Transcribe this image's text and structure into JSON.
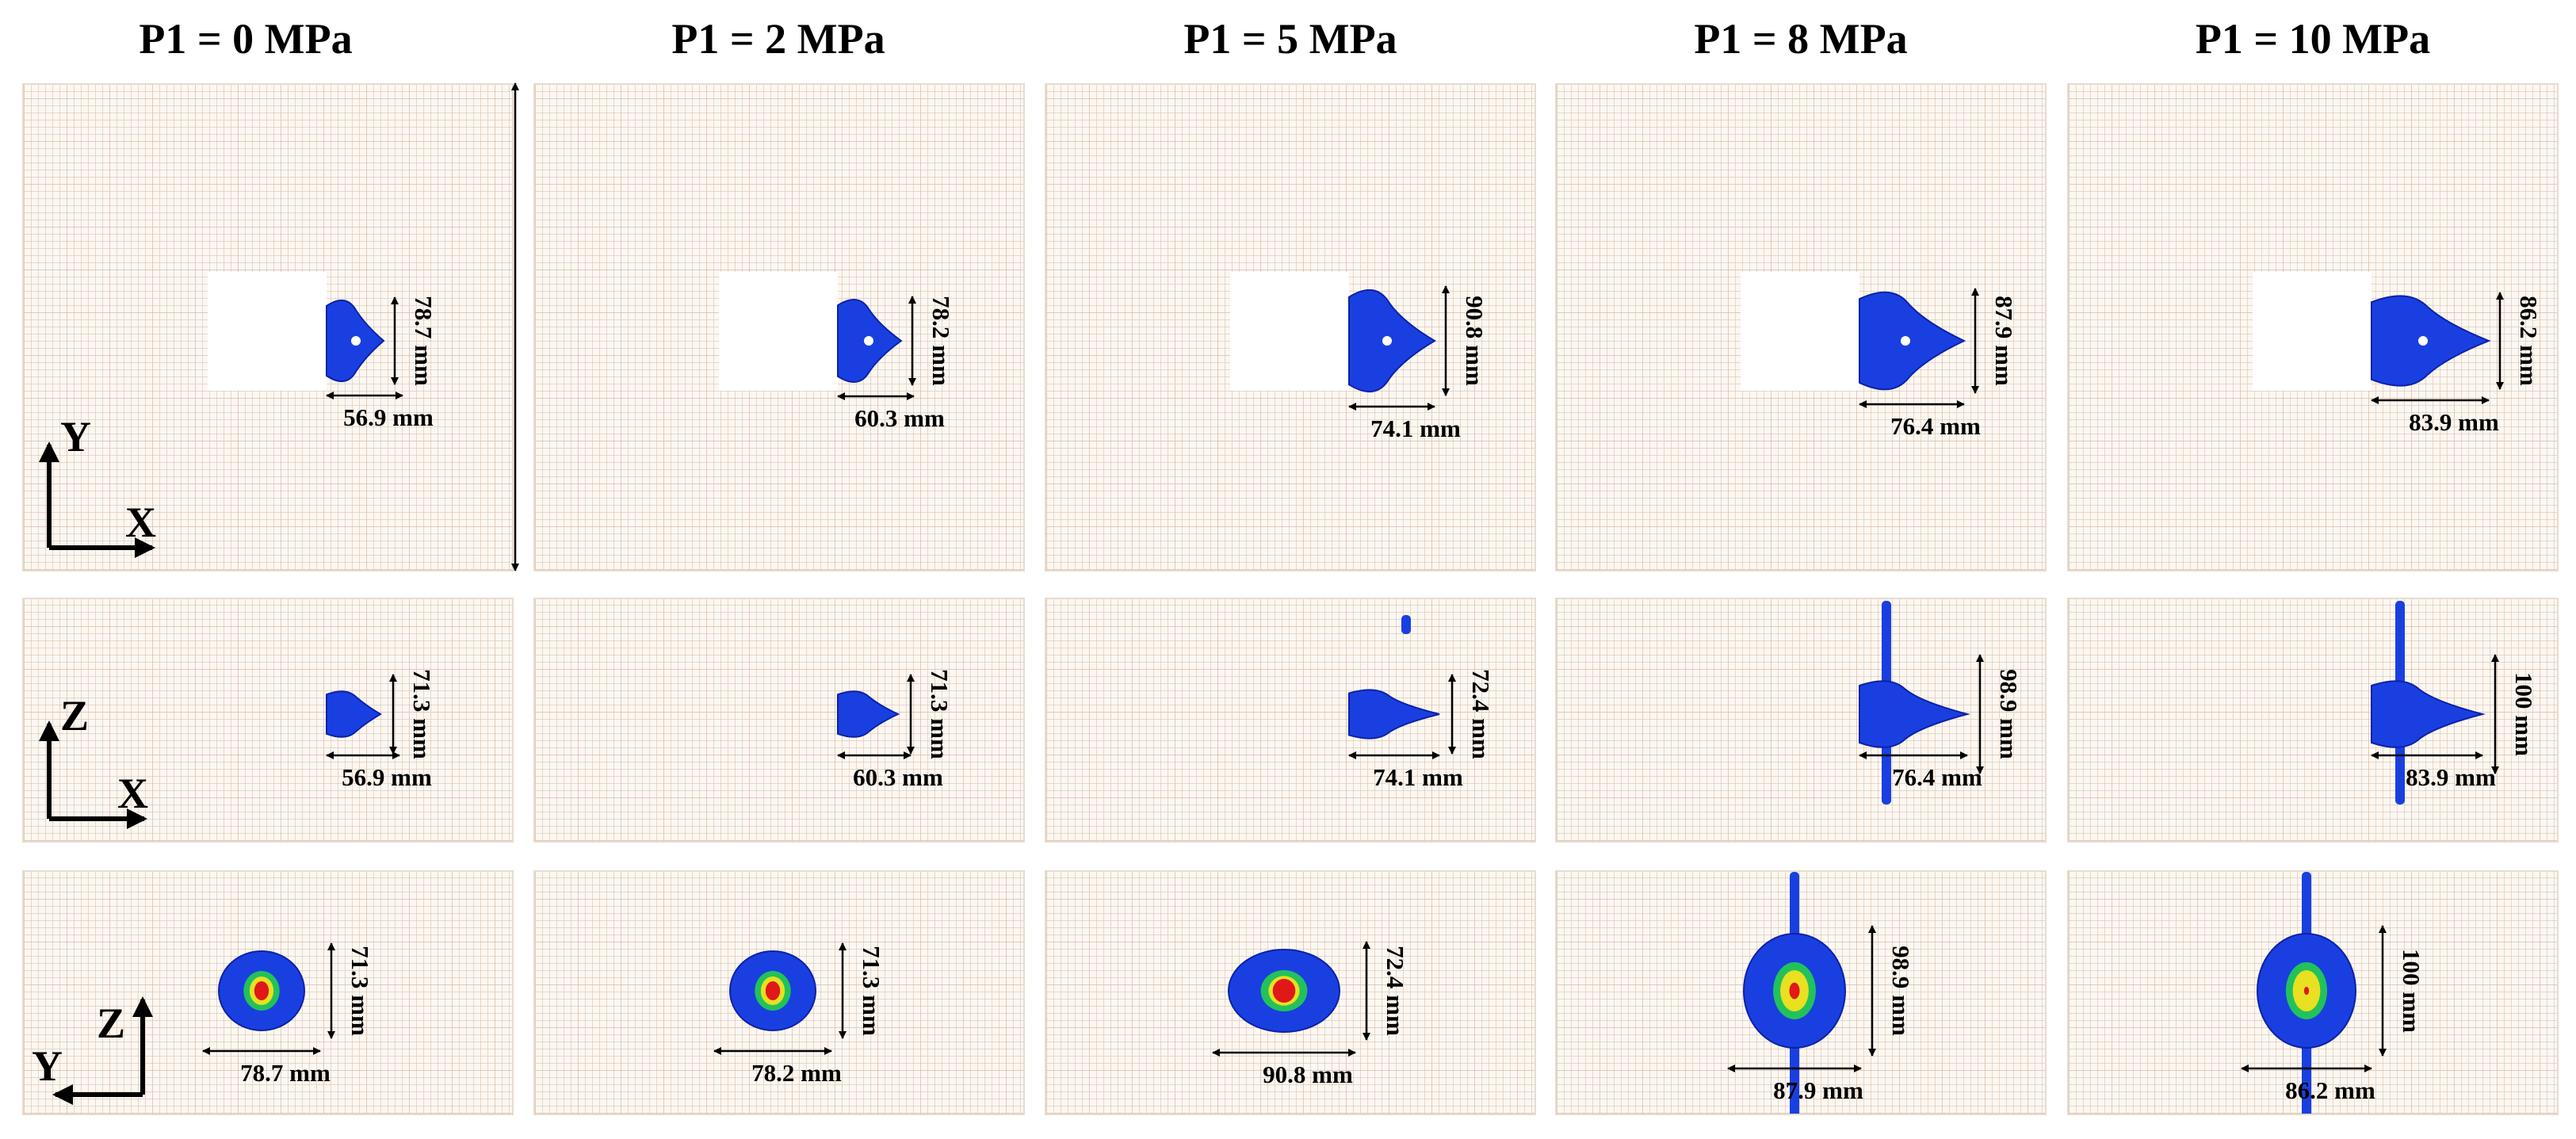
{
  "columns": [
    {
      "title": "P1 = 0 MPa",
      "views": [
        {
          "h": "56.9 mm",
          "v": "78.7 mm"
        },
        {
          "h": "56.9 mm",
          "v": "71.3 mm"
        },
        {
          "h": "78.7 mm",
          "v": "71.3 mm"
        }
      ]
    },
    {
      "title": "P1 = 2 MPa",
      "views": [
        {
          "h": "60.3 mm",
          "v": "78.2 mm"
        },
        {
          "h": "60.3 mm",
          "v": "71.3 mm"
        },
        {
          "h": "78.2 mm",
          "v": "71.3 mm"
        }
      ]
    },
    {
      "title": "P1 = 5 MPa",
      "views": [
        {
          "h": "74.1 mm",
          "v": "90.8 mm"
        },
        {
          "h": "74.1 mm",
          "v": "72.4 mm"
        },
        {
          "h": "90.8 mm",
          "v": "72.4 mm"
        }
      ]
    },
    {
      "title": "P1 = 8 MPa",
      "views": [
        {
          "h": "76.4 mm",
          "v": "87.9 mm"
        },
        {
          "h": "76.4 mm",
          "v": "98.9 mm"
        },
        {
          "h": "87.9 mm",
          "v": "98.9 mm"
        }
      ]
    },
    {
      "title": "P1 = 10 MPa",
      "views": [
        {
          "h": "83.9 mm",
          "v": "86.2 mm"
        },
        {
          "h": "83.9 mm",
          "v": "100 mm"
        },
        {
          "h": "86.2 mm",
          "v": "100 mm"
        }
      ]
    }
  ],
  "axes": [
    {
      "vertical": "Y",
      "horizontal": "X"
    },
    {
      "vertical": "Z",
      "horizontal": "X"
    },
    {
      "vertical": "Z",
      "horizontal": "Y"
    }
  ],
  "colors": {
    "fracture_blue": "#1a3fe0",
    "fracture_green": "#22c25a",
    "fracture_yellow": "#e8e020",
    "fracture_red": "#e01818",
    "grid": "#d6bea5"
  }
}
